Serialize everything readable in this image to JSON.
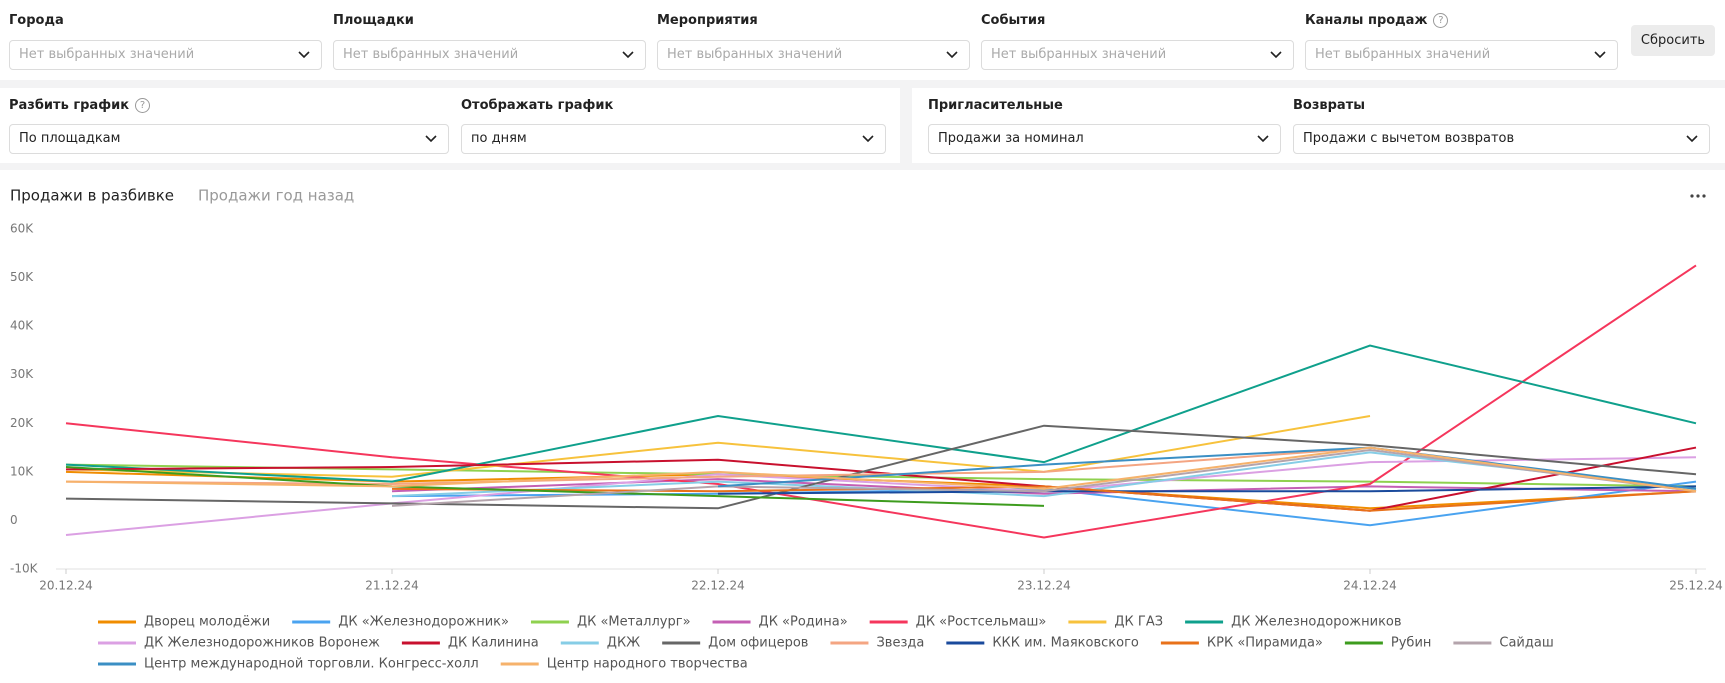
{
  "filters": [
    {
      "label": "Города",
      "placeholder": "Нет выбранных значений"
    },
    {
      "label": "Площадки",
      "placeholder": "Нет выбранных значений"
    },
    {
      "label": "Мероприятия",
      "placeholder": "Нет выбранных значений"
    },
    {
      "label": "События",
      "placeholder": "Нет выбранных значений"
    },
    {
      "label": "Каналы продаж",
      "placeholder": "Нет выбранных значений"
    }
  ],
  "reset_button": "Сбросить",
  "settings": [
    {
      "label": "Разбить график",
      "value": "По площадкам"
    },
    {
      "label": "Отображать график",
      "value": "по дням"
    },
    {
      "label": "Пригласительные",
      "value": "Продажи за номинал"
    },
    {
      "label": "Возвраты",
      "value": "Продажи с вычетом возвратов"
    }
  ],
  "tabs": [
    "Продажи в разбивке",
    "Продажи год назад"
  ],
  "chart_data": {
    "type": "line",
    "categories": [
      "20.12.24",
      "21.12.24",
      "22.12.24",
      "23.12.24",
      "24.12.24",
      "25.12.24"
    ],
    "ylim": [
      -10000,
      60000
    ],
    "yticks": [
      {
        "value": 60000,
        "label": "60K"
      },
      {
        "value": 50000,
        "label": "50K"
      },
      {
        "value": 40000,
        "label": "40K"
      },
      {
        "value": 30000,
        "label": "30K"
      },
      {
        "value": 20000,
        "label": "20K"
      },
      {
        "value": 10000,
        "label": "10K"
      },
      0,
      {
        "value": -10000,
        "label": "-10K"
      }
    ],
    "grid": false,
    "series": [
      {
        "name": "Дворец молодёжи",
        "color": "#f08c00",
        "values": [
          10000,
          8000,
          9500,
          7000,
          2500,
          6000
        ]
      },
      {
        "name": "ДК «Железнодорожник»",
        "color": "#4aa3f0",
        "values": [
          null,
          5000,
          5500,
          6500,
          -1000,
          8000
        ]
      },
      {
        "name": "ДК «Металлург»",
        "color": "#8fd14f",
        "values": [
          11500,
          10500,
          9500,
          8500,
          8000,
          7000
        ]
      },
      {
        "name": "ДК «Родина»",
        "color": "#c45fb4",
        "values": [
          null,
          6000,
          8500,
          5500,
          7000,
          6000
        ]
      },
      {
        "name": "ДК «Ростсельмаш»",
        "color": "#f5365c",
        "values": [
          20000,
          13000,
          7500,
          -3500,
          7500,
          52500
        ]
      },
      {
        "name": "ДК ГАЗ",
        "color": "#f7c23c",
        "values": [
          10500,
          9000,
          16000,
          10000,
          21500,
          null
        ]
      },
      {
        "name": "ДК Железнодорожников",
        "color": "#0fa08c",
        "values": [
          11500,
          8000,
          21500,
          12000,
          36000,
          20000
        ]
      },
      {
        "name": "ДК Железнодорожников Воронеж",
        "color": "#dba0e3",
        "values": [
          -3000,
          3500,
          9500,
          6000,
          12000,
          13000
        ]
      },
      {
        "name": "ДК Калинина",
        "color": "#c8102e",
        "values": [
          10500,
          11000,
          12500,
          7000,
          2000,
          15000
        ]
      },
      {
        "name": "ДКЖ",
        "color": "#86cde6",
        "values": [
          null,
          5000,
          8000,
          5000,
          14000,
          6500
        ]
      },
      {
        "name": "Дом офицеров",
        "color": "#666666",
        "values": [
          4500,
          3500,
          2500,
          19500,
          15500,
          9500
        ]
      },
      {
        "name": "Звезда",
        "color": "#f4a582",
        "values": [
          8000,
          7500,
          9000,
          10000,
          15000,
          6000
        ]
      },
      {
        "name": "ККК им. Маяковского",
        "color": "#1a4a9c",
        "values": [
          null,
          null,
          5500,
          6000,
          6000,
          7000
        ]
      },
      {
        "name": "КРК «Пирамида»",
        "color": "#e8711a",
        "values": [
          null,
          6500,
          6000,
          7000,
          2000,
          6000
        ]
      },
      {
        "name": "Рубин",
        "color": "#3d9c1e",
        "values": [
          11000,
          7000,
          5000,
          3000,
          null,
          null
        ]
      },
      {
        "name": "Сайдаш",
        "color": "#b4a4ac",
        "values": [
          null,
          3000,
          7000,
          6000,
          14500,
          6000
        ]
      },
      {
        "name": "Центр международной торговли. Конгресс-холл",
        "color": "#3b8fc4",
        "values": [
          null,
          null,
          7000,
          11500,
          15000,
          6500
        ]
      },
      {
        "name": "Центр народного творчества",
        "color": "#f6b26b",
        "values": [
          8000,
          7000,
          10000,
          6500,
          15000,
          6000
        ]
      }
    ]
  }
}
